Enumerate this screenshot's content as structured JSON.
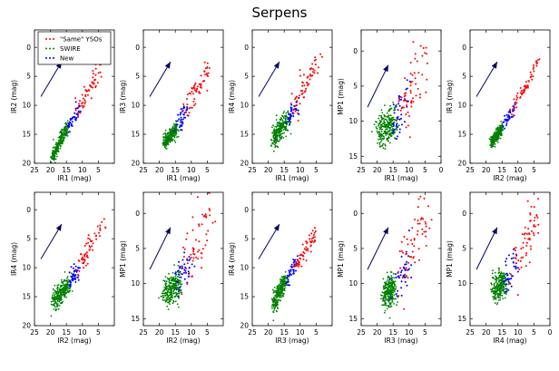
{
  "figure": {
    "title": "Serpens"
  },
  "legend": {
    "placement": "top-left of first panel",
    "entries": [
      {
        "label": "\"Same\" YSOs",
        "color": "#ff0000"
      },
      {
        "label": "SWIRE",
        "color": "#008000"
      },
      {
        "label": "New",
        "color": "#0000ff"
      }
    ]
  },
  "colors": {
    "same_ysos": "#ff0000",
    "swire": "#008000",
    "new": "#0000ff",
    "arrow": "#000060"
  },
  "chart_data": [
    {
      "type": "scatter",
      "xlabel": "IR1 (mag)",
      "ylabel": "IR2 (mag)",
      "xlim": [
        25,
        0
      ],
      "ylim": [
        20,
        -3
      ],
      "xticks": [
        25,
        20,
        15,
        10,
        5
      ],
      "yticks": [
        0,
        5,
        10,
        15,
        20
      ],
      "reddening_vector": {
        "from": [
          23,
          8.5
        ],
        "to": [
          16.5,
          2.5
        ]
      },
      "series": [
        {
          "name": "SWIRE",
          "color": "#008000",
          "segment": {
            "from": [
              19.5,
              19.0
            ],
            "to": [
              14.5,
              13.5
            ]
          },
          "spread": 0.55
        },
        {
          "name": "New",
          "color": "#0000ff",
          "segment": {
            "from": [
              14.5,
              14.0
            ],
            "to": [
              11.0,
              10.5
            ]
          },
          "spread": 0.6
        },
        {
          "name": "\"Same\" YSOs",
          "color": "#ff0000",
          "segment": {
            "from": [
              12.0,
              11.5
            ],
            "to": [
              4.0,
              3.5
            ]
          },
          "spread": 0.8
        }
      ]
    },
    {
      "type": "scatter",
      "xlabel": "IR1 (mag)",
      "ylabel": "IR3 (mag)",
      "xlim": [
        25,
        0
      ],
      "ylim": [
        20,
        -3
      ],
      "xticks": [
        25,
        20,
        15,
        10,
        5
      ],
      "yticks": [
        0,
        5,
        10,
        15,
        20
      ],
      "reddening_vector": {
        "from": [
          23,
          8.5
        ],
        "to": [
          16.5,
          2.5
        ]
      },
      "series": [
        {
          "name": "SWIRE",
          "color": "#008000",
          "segment": {
            "from": [
              18.5,
              16.5
            ],
            "to": [
              14.5,
              14.0
            ]
          },
          "spread": 0.6
        },
        {
          "name": "New",
          "color": "#0000ff",
          "segment": {
            "from": [
              14.5,
              13.5
            ],
            "to": [
              11.0,
              10.5
            ]
          },
          "spread": 0.8
        },
        {
          "name": "\"Same\" YSOs",
          "color": "#ff0000",
          "segment": {
            "from": [
              12.0,
              11.0
            ],
            "to": [
              4.5,
              3.5
            ]
          },
          "spread": 1.0
        }
      ]
    },
    {
      "type": "scatter",
      "xlabel": "IR1 (mag)",
      "ylabel": "IR4 (mag)",
      "xlim": [
        25,
        0
      ],
      "ylim": [
        20,
        -3
      ],
      "xticks": [
        25,
        20,
        15,
        10,
        5
      ],
      "yticks": [
        0,
        5,
        10,
        15,
        20
      ],
      "reddening_vector": {
        "from": [
          23,
          8.5
        ],
        "to": [
          16.5,
          2.5
        ]
      },
      "series": [
        {
          "name": "SWIRE",
          "color": "#008000",
          "segment": {
            "from": [
              18.5,
              16.0
            ],
            "to": [
              14.0,
              12.5
            ]
          },
          "spread": 0.9
        },
        {
          "name": "New",
          "color": "#0000ff",
          "segment": {
            "from": [
              14.0,
              12.5
            ],
            "to": [
              10.5,
              10.0
            ]
          },
          "spread": 0.9
        },
        {
          "name": "\"Same\" YSOs",
          "color": "#ff0000",
          "segment": {
            "from": [
              12.0,
              10.5
            ],
            "to": [
              4.5,
              2.5
            ]
          },
          "spread": 1.2
        }
      ]
    },
    {
      "type": "scatter",
      "xlabel": "IR1 (mag)",
      "ylabel": "MP1 (mag)",
      "xlim": [
        25,
        0
      ],
      "ylim": [
        16,
        -3
      ],
      "xticks": [
        25,
        20,
        15,
        10,
        5,
        0
      ],
      "yticks": [
        0,
        5,
        10,
        15
      ],
      "reddening_vector": {
        "from": [
          23,
          8.0
        ],
        "to": [
          16.5,
          2.0
        ]
      },
      "series": [
        {
          "name": "SWIRE",
          "color": "#008000",
          "segment": {
            "from": [
              19.5,
              11.5
            ],
            "to": [
              14.5,
              10.0
            ]
          },
          "spread": 1.2
        },
        {
          "name": "New",
          "color": "#0000ff",
          "segment": {
            "from": [
              14.5,
              10.5
            ],
            "to": [
              10.5,
              7.0
            ]
          },
          "spread": 1.4
        },
        {
          "name": "\"Same\" YSOs",
          "color": "#ff0000",
          "segment": {
            "from": [
              12.5,
              9.0
            ],
            "to": [
              5.0,
              0.5
            ]
          },
          "spread": 2.2
        }
      ]
    },
    {
      "type": "scatter",
      "xlabel": "IR2 (mag)",
      "ylabel": "IR3 (mag)",
      "xlim": [
        25,
        0
      ],
      "ylim": [
        20,
        -3
      ],
      "xticks": [
        25,
        20,
        15,
        10,
        5
      ],
      "yticks": [
        0,
        5,
        10,
        15,
        20
      ],
      "reddening_vector": {
        "from": [
          23,
          8.5
        ],
        "to": [
          16.5,
          2.5
        ]
      },
      "series": [
        {
          "name": "SWIRE",
          "color": "#008000",
          "segment": {
            "from": [
              18.5,
              16.5
            ],
            "to": [
              15.0,
              14.0
            ]
          },
          "spread": 0.5
        },
        {
          "name": "New",
          "color": "#0000ff",
          "segment": {
            "from": [
              14.5,
              13.5
            ],
            "to": [
              11.0,
              10.5
            ]
          },
          "spread": 0.5
        },
        {
          "name": "\"Same\" YSOs",
          "color": "#ff0000",
          "segment": {
            "from": [
              12.0,
              11.0
            ],
            "to": [
              3.5,
              2.5
            ]
          },
          "spread": 0.5
        }
      ]
    },
    {
      "type": "scatter",
      "xlabel": "IR2 (mag)",
      "ylabel": "IR4 (mag)",
      "xlim": [
        25,
        0
      ],
      "ylim": [
        20,
        -3
      ],
      "xticks": [
        25,
        20,
        15,
        10,
        5
      ],
      "yticks": [
        0,
        5,
        10,
        15,
        20
      ],
      "reddening_vector": {
        "from": [
          23,
          8.5
        ],
        "to": [
          16.5,
          2.5
        ]
      },
      "series": [
        {
          "name": "SWIRE",
          "color": "#008000",
          "segment": {
            "from": [
              19.0,
              16.0
            ],
            "to": [
              14.0,
              12.5
            ]
          },
          "spread": 0.9
        },
        {
          "name": "New",
          "color": "#0000ff",
          "segment": {
            "from": [
              14.0,
              12.5
            ],
            "to": [
              11.0,
              10.0
            ]
          },
          "spread": 0.8
        },
        {
          "name": "\"Same\" YSOs",
          "color": "#ff0000",
          "segment": {
            "from": [
              12.0,
              10.5
            ],
            "to": [
              3.5,
              2.5
            ]
          },
          "spread": 1.0
        }
      ]
    },
    {
      "type": "scatter",
      "xlabel": "IR2 (mag)",
      "ylabel": "MP1 (mag)",
      "xlim": [
        25,
        0
      ],
      "ylim": [
        16,
        -3
      ],
      "xticks": [
        25,
        20,
        15,
        10,
        5
      ],
      "yticks": [
        0,
        5,
        10,
        15
      ],
      "reddening_vector": {
        "from": [
          23,
          8.0
        ],
        "to": [
          16.5,
          2.0
        ]
      },
      "series": [
        {
          "name": "SWIRE",
          "color": "#008000",
          "segment": {
            "from": [
              18.5,
              11.5
            ],
            "to": [
              14.0,
              10.0
            ]
          },
          "spread": 1.1
        },
        {
          "name": "New",
          "color": "#0000ff",
          "segment": {
            "from": [
              14.0,
              10.0
            ],
            "to": [
              10.0,
              6.0
            ]
          },
          "spread": 1.4
        },
        {
          "name": "\"Same\" YSOs",
          "color": "#ff0000",
          "segment": {
            "from": [
              12.0,
              8.0
            ],
            "to": [
              4.0,
              0.0
            ]
          },
          "spread": 2.0
        }
      ]
    },
    {
      "type": "scatter",
      "xlabel": "IR3 (mag)",
      "ylabel": "IR4 (mag)",
      "xlim": [
        25,
        0
      ],
      "ylim": [
        20,
        -3
      ],
      "xticks": [
        25,
        20,
        15,
        10,
        5
      ],
      "yticks": [
        0,
        5,
        10,
        15,
        20
      ],
      "reddening_vector": {
        "from": [
          23,
          8.5
        ],
        "to": [
          16.5,
          2.5
        ]
      },
      "series": [
        {
          "name": "SWIRE",
          "color": "#008000",
          "segment": {
            "from": [
              18.5,
              16.5
            ],
            "to": [
              14.5,
              12.0
            ]
          },
          "spread": 0.8
        },
        {
          "name": "New",
          "color": "#0000ff",
          "segment": {
            "from": [
              14.5,
              12.5
            ],
            "to": [
              11.0,
              9.0
            ]
          },
          "spread": 0.6
        },
        {
          "name": "\"Same\" YSOs",
          "color": "#ff0000",
          "segment": {
            "from": [
              12.0,
              10.0
            ],
            "to": [
              5.0,
              4.0
            ]
          },
          "spread": 0.7
        }
      ]
    },
    {
      "type": "scatter",
      "xlabel": "IR3 (mag)",
      "ylabel": "MP1 (mag)",
      "xlim": [
        25,
        0
      ],
      "ylim": [
        16,
        -3
      ],
      "xticks": [
        25,
        20,
        15,
        10,
        5
      ],
      "yticks": [
        0,
        5,
        10,
        15
      ],
      "reddening_vector": {
        "from": [
          23,
          8.0
        ],
        "to": [
          16.5,
          2.0
        ]
      },
      "series": [
        {
          "name": "SWIRE",
          "color": "#008000",
          "segment": {
            "from": [
              18.0,
              12.0
            ],
            "to": [
              14.5,
              10.5
            ]
          },
          "spread": 1.1
        },
        {
          "name": "New",
          "color": "#0000ff",
          "segment": {
            "from": [
              14.5,
              10.5
            ],
            "to": [
              10.5,
              7.0
            ]
          },
          "spread": 1.4
        },
        {
          "name": "\"Same\" YSOs",
          "color": "#ff0000",
          "segment": {
            "from": [
              12.5,
              9.0
            ],
            "to": [
              4.5,
              0.0
            ]
          },
          "spread": 2.0
        }
      ]
    },
    {
      "type": "scatter",
      "xlabel": "IR4 (mag)",
      "ylabel": "MP1 (mag)",
      "xlim": [
        25,
        0
      ],
      "ylim": [
        16,
        -3
      ],
      "xticks": [
        25,
        20,
        15,
        10,
        5,
        0
      ],
      "yticks": [
        0,
        5,
        10,
        15
      ],
      "reddening_vector": {
        "from": [
          23,
          8.0
        ],
        "to": [
          16.5,
          2.0
        ]
      },
      "series": [
        {
          "name": "SWIRE",
          "color": "#008000",
          "segment": {
            "from": [
              17.5,
              11.0
            ],
            "to": [
              14.0,
              9.5
            ]
          },
          "spread": 1.0
        },
        {
          "name": "New",
          "color": "#0000ff",
          "segment": {
            "from": [
              14.0,
              9.5
            ],
            "to": [
              10.5,
              7.0
            ]
          },
          "spread": 1.2
        },
        {
          "name": "\"Same\" YSOs",
          "color": "#ff0000",
          "segment": {
            "from": [
              11.5,
              8.0
            ],
            "to": [
              4.5,
              0.5
            ]
          },
          "spread": 1.8
        }
      ]
    }
  ]
}
